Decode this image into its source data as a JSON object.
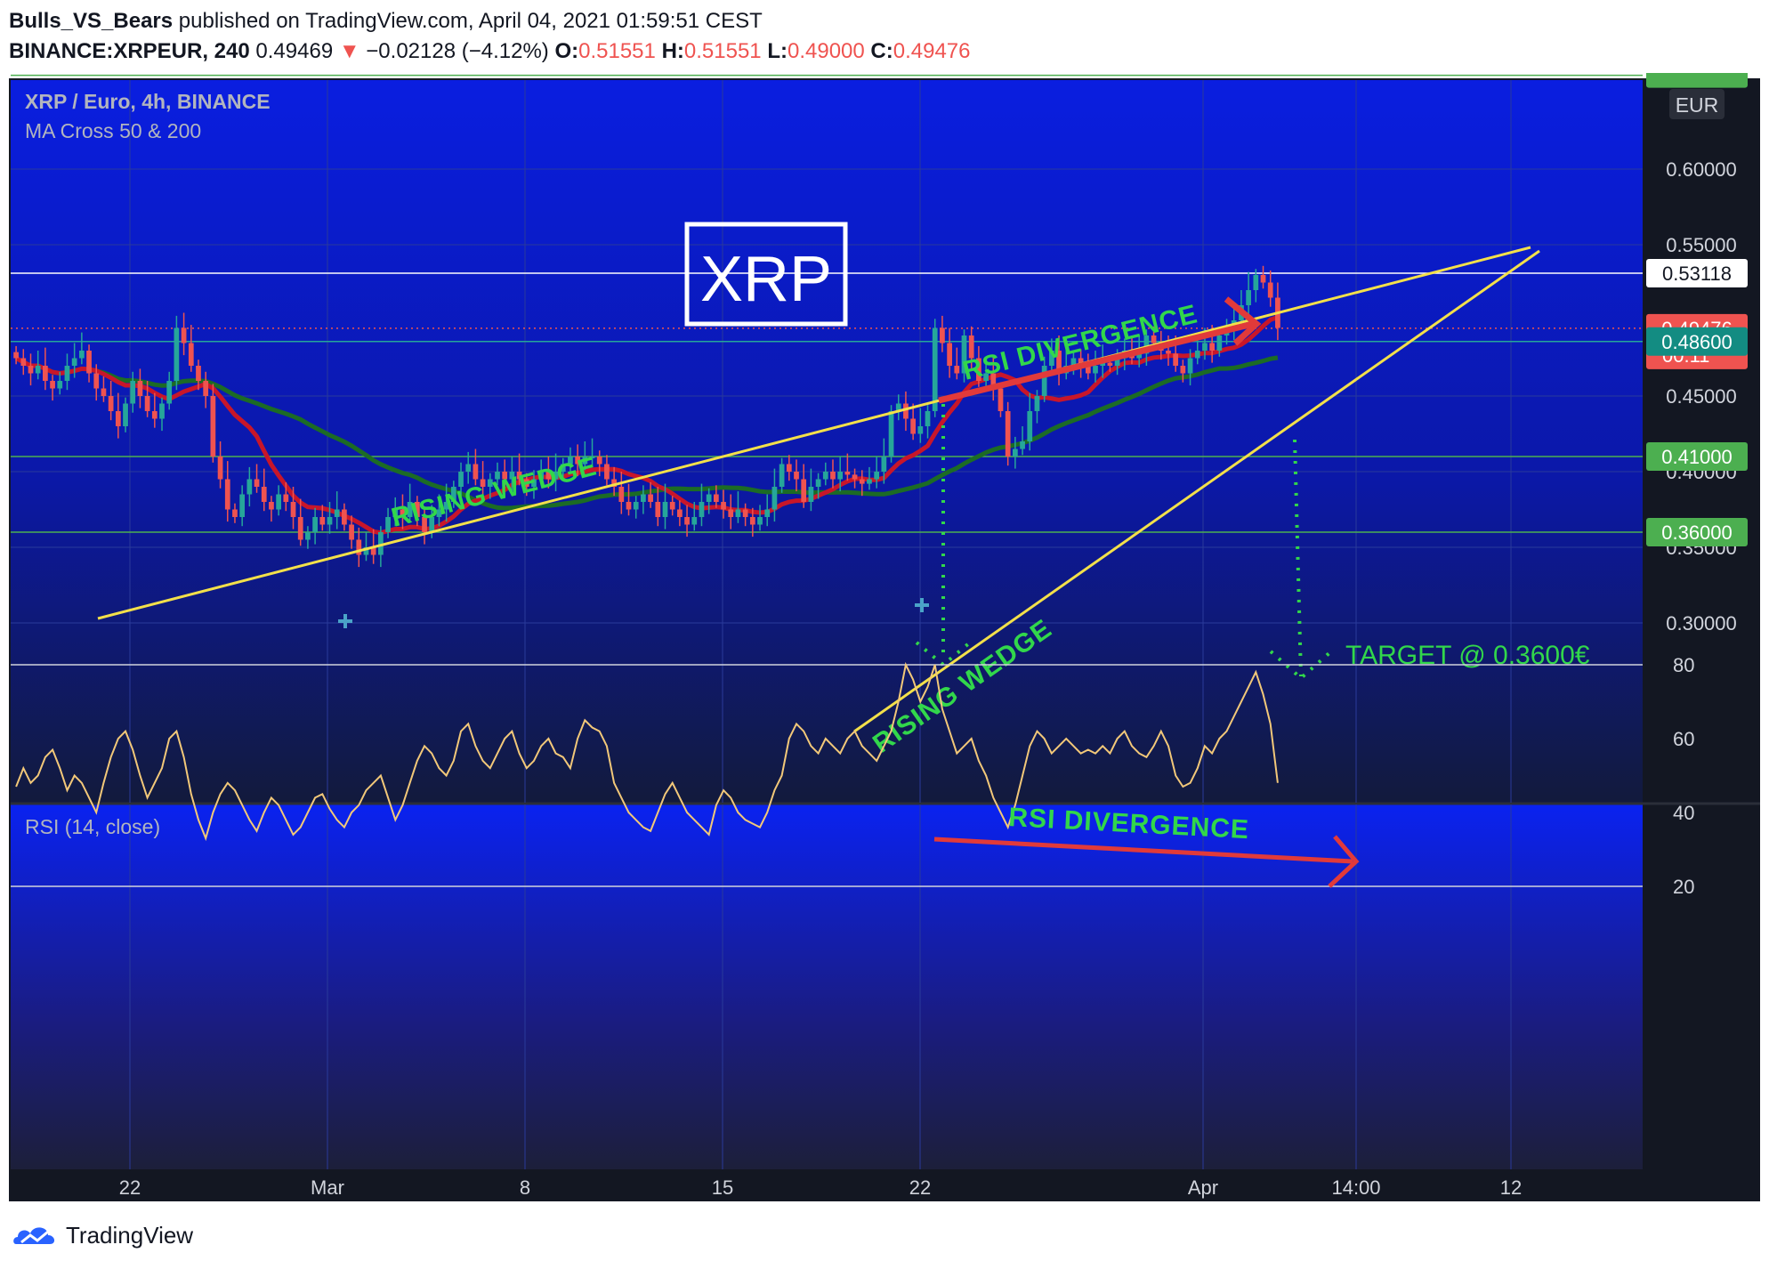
{
  "header": {
    "author": "Bulls_VS_Bears",
    "published_text": "published on TradingView.com, April 04, 2021 01:59:51 CEST",
    "symbol": "BINANCE:XRPEUR, 240",
    "last": "0.49469",
    "change_arrow": "▼",
    "change": "−0.02128 (−4.12%)",
    "open_label": "O:",
    "open": "0.51551",
    "high_label": "H:",
    "high": "0.51551",
    "low_label": "L:",
    "low": "0.49000",
    "close_label": "C:",
    "close": "0.49476"
  },
  "legend": {
    "title": "XRP / Euro, 4h, BINANCE",
    "indicator": "MA Cross 50 & 200"
  },
  "currency": "EUR",
  "rsi_legend": "RSI (14, close)",
  "brand": "TradingView",
  "annotations": {
    "logo_box": "XRP",
    "wedge_label_1": "RISING WEDGE",
    "wedge_label_2": "RISING WEDGE",
    "divergence_price": "RSI DIVERGENCE",
    "divergence_rsi": "RSI DIVERGENCE",
    "target": "TARGET @ 0.3600€"
  },
  "colors": {
    "bull_candle": "#26a69a",
    "bear_candle": "#ef5350",
    "ma50": "#c8162a",
    "ma200": "#1c6b25",
    "trendline": "#f3e04a",
    "rsi_line": "#f2c879",
    "annotation_green": "#32d74b",
    "annotation_red": "#e13a3a",
    "price_tag_red": "#ef5350",
    "price_tag_teal": "#138c82",
    "price_tag_green": "#4caf50"
  },
  "chart_data": {
    "type": "candlestick",
    "price_axis": {
      "ticks": [
        "0.60000",
        "0.55000",
        "0.45000",
        "0.40000",
        "0.35000",
        "0.30000"
      ],
      "tick_values": [
        0.6,
        0.55,
        0.45,
        0.4,
        0.35,
        0.3
      ]
    },
    "time_axis": {
      "ticks": [
        "22",
        "Mar",
        "8",
        "15",
        "22",
        "Apr",
        "14:00",
        "12"
      ]
    },
    "price_tags": [
      {
        "label": "0.53118",
        "value": 0.53118,
        "style": "white"
      },
      {
        "label": "0.49476",
        "value": 0.49476,
        "sub": "00:11",
        "style": "red"
      },
      {
        "label": "0.48600",
        "value": 0.486,
        "style": "teal"
      },
      {
        "label": "0.41000",
        "value": 0.41,
        "style": "green"
      },
      {
        "label": "0.36000",
        "value": 0.36,
        "style": "green"
      }
    ],
    "horizontal_levels": [
      0.662,
      0.53118,
      0.486,
      0.41,
      0.36
    ],
    "candles_close": [
      0.475,
      0.47,
      0.465,
      0.47,
      0.46,
      0.455,
      0.46,
      0.47,
      0.475,
      0.48,
      0.465,
      0.455,
      0.45,
      0.44,
      0.43,
      0.445,
      0.46,
      0.45,
      0.44,
      0.435,
      0.445,
      0.46,
      0.495,
      0.485,
      0.47,
      0.46,
      0.45,
      0.41,
      0.395,
      0.375,
      0.37,
      0.385,
      0.395,
      0.39,
      0.38,
      0.375,
      0.385,
      0.38,
      0.37,
      0.355,
      0.36,
      0.37,
      0.365,
      0.37,
      0.375,
      0.365,
      0.355,
      0.345,
      0.35,
      0.345,
      0.36,
      0.37,
      0.375,
      0.37,
      0.38,
      0.37,
      0.36,
      0.37,
      0.375,
      0.38,
      0.39,
      0.4,
      0.405,
      0.395,
      0.39,
      0.395,
      0.4,
      0.395,
      0.4,
      0.395,
      0.39,
      0.395,
      0.4,
      0.395,
      0.4,
      0.405,
      0.41,
      0.405,
      0.41,
      0.41,
      0.405,
      0.395,
      0.39,
      0.38,
      0.375,
      0.38,
      0.385,
      0.38,
      0.37,
      0.38,
      0.375,
      0.37,
      0.365,
      0.37,
      0.38,
      0.385,
      0.38,
      0.375,
      0.37,
      0.375,
      0.37,
      0.365,
      0.37,
      0.375,
      0.39,
      0.405,
      0.4,
      0.395,
      0.38,
      0.39,
      0.395,
      0.4,
      0.395,
      0.4,
      0.398,
      0.395,
      0.392,
      0.395,
      0.4,
      0.41,
      0.44,
      0.445,
      0.435,
      0.425,
      0.43,
      0.44,
      0.495,
      0.485,
      0.47,
      0.465,
      0.49,
      0.475,
      0.46,
      0.465,
      0.455,
      0.44,
      0.41,
      0.415,
      0.42,
      0.44,
      0.45,
      0.47,
      0.48,
      0.465,
      0.47,
      0.475,
      0.47,
      0.465,
      0.47,
      0.472,
      0.47,
      0.475,
      0.48,
      0.475,
      0.478,
      0.49,
      0.485,
      0.48,
      0.478,
      0.47,
      0.465,
      0.475,
      0.48,
      0.485,
      0.48,
      0.49,
      0.495,
      0.5,
      0.51,
      0.52,
      0.53,
      0.525,
      0.515,
      0.495
    ],
    "annotated_targets": {
      "target_price": 0.36
    }
  },
  "rsi_data": {
    "type": "line",
    "ticks": [
      "80",
      "60",
      "40",
      "20"
    ],
    "tick_values": [
      80,
      60,
      40,
      20
    ],
    "bands": [
      80,
      20
    ],
    "values": [
      47,
      52,
      48,
      50,
      55,
      57,
      52,
      46,
      50,
      48,
      44,
      40,
      48,
      55,
      60,
      62,
      57,
      50,
      44,
      48,
      52,
      60,
      62,
      55,
      45,
      38,
      33,
      40,
      45,
      48,
      46,
      42,
      38,
      35,
      40,
      44,
      42,
      38,
      34,
      36,
      40,
      44,
      45,
      41,
      38,
      36,
      40,
      42,
      46,
      48,
      50,
      44,
      38,
      42,
      48,
      54,
      58,
      56,
      52,
      50,
      54,
      62,
      64,
      58,
      54,
      52,
      56,
      60,
      62,
      56,
      52,
      54,
      58,
      60,
      56,
      55,
      52,
      60,
      65,
      63,
      62,
      58,
      48,
      44,
      40,
      38,
      36,
      35,
      40,
      45,
      48,
      44,
      40,
      38,
      36,
      34,
      42,
      46,
      44,
      40,
      38,
      37,
      36,
      40,
      46,
      50,
      60,
      64,
      62,
      58,
      56,
      60,
      58,
      56,
      60,
      62,
      58,
      56,
      54,
      58,
      62,
      70,
      80,
      76,
      70,
      74,
      80,
      68,
      62,
      56,
      58,
      60,
      54,
      50,
      44,
      40,
      36,
      42,
      50,
      58,
      62,
      60,
      56,
      58,
      60,
      58,
      56,
      57,
      56,
      58,
      56,
      60,
      62,
      58,
      56,
      55,
      58,
      62,
      58,
      50,
      47,
      48,
      52,
      58,
      56,
      60,
      62,
      66,
      70,
      74,
      78,
      72,
      64,
      48
    ]
  }
}
